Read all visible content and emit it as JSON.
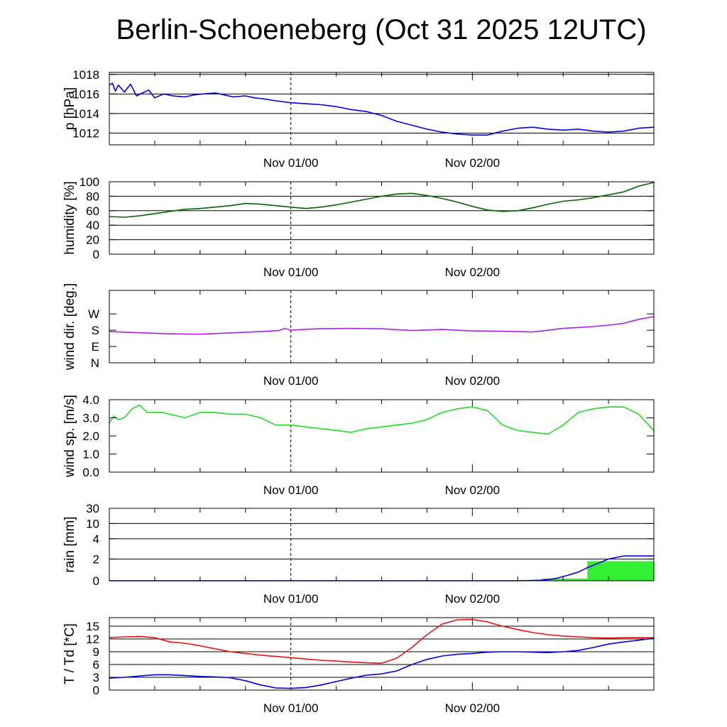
{
  "title": "Berlin-Schoeneberg (Oct 31 2025 12UTC)",
  "x_tick_labels": [
    "Nov 01/00",
    "Nov 02/00"
  ],
  "chart_data": [
    {
      "id": "pressure",
      "type": "line",
      "ylabel": "p [hPa]",
      "ylim": [
        1010.8,
        1018.2
      ],
      "yticks": [
        1012,
        1014,
        1016,
        1018
      ],
      "ytick_labels": [
        "1012",
        "1014",
        "1016",
        "1018"
      ],
      "grid": true,
      "series": [
        {
          "name": "pressure",
          "color": "#0000dd",
          "x": [
            0,
            0.2,
            0.4,
            0.6,
            1.0,
            1.4,
            1.8,
            2.2,
            2.6,
            3.0,
            3.6,
            4.2,
            5.0,
            5.6,
            6.2,
            7.0,
            7.6,
            8.2,
            9.0,
            9.6,
            10.2,
            11.0,
            12.0,
            13.0,
            14.0,
            15.0,
            16.0,
            17.0,
            18.0,
            19.0,
            20.0,
            21.0,
            22.0,
            23.0,
            24.0,
            25.0,
            26.0,
            27.0,
            28.0,
            29.0,
            30.0,
            31.0,
            32.0,
            33.0,
            34.0,
            35.0,
            36.0
          ],
          "values": [
            1016.9,
            1017.1,
            1016.3,
            1016.9,
            1016.2,
            1017.0,
            1015.8,
            1016.1,
            1016.4,
            1015.6,
            1016.0,
            1015.8,
            1015.7,
            1015.9,
            1016.0,
            1016.1,
            1015.9,
            1015.7,
            1015.8,
            1015.6,
            1015.5,
            1015.3,
            1015.1,
            1015.0,
            1014.9,
            1014.7,
            1014.4,
            1014.2,
            1013.8,
            1013.2,
            1012.8,
            1012.4,
            1012.1,
            1011.9,
            1011.8,
            1011.8,
            1012.2,
            1012.5,
            1012.6,
            1012.4,
            1012.3,
            1012.4,
            1012.2,
            1012.1,
            1012.2,
            1012.5,
            1012.6
          ]
        }
      ]
    },
    {
      "id": "humidity",
      "type": "line",
      "ylabel": "humidity [%]",
      "ylim": [
        0,
        100
      ],
      "yticks": [
        0,
        20,
        40,
        60,
        80,
        100
      ],
      "ytick_labels": [
        "0",
        "20",
        "40",
        "60",
        "80",
        "100"
      ],
      "grid": true,
      "series": [
        {
          "name": "humidity",
          "color": "#006600",
          "x": [
            0,
            1,
            2,
            3,
            4,
            5,
            6,
            7,
            8,
            9,
            10,
            11,
            12,
            13,
            14,
            15,
            16,
            17,
            18,
            19,
            20,
            21,
            22,
            23,
            24,
            25,
            26,
            27,
            28,
            29,
            30,
            31,
            32,
            33,
            34,
            35,
            36
          ],
          "values": [
            52,
            51,
            53,
            56,
            59,
            62,
            63,
            65,
            67,
            70,
            69,
            67,
            65,
            63,
            65,
            68,
            72,
            76,
            80,
            83,
            84,
            81,
            77,
            72,
            66,
            61,
            59,
            60,
            64,
            69,
            73,
            75,
            78,
            82,
            86,
            94,
            99
          ]
        }
      ]
    },
    {
      "id": "wind_direction",
      "type": "line",
      "ylabel": "wind dir. [deg.]",
      "ylim": [
        0,
        400
      ],
      "yticks": [
        0,
        90,
        180,
        270
      ],
      "ytick_labels": [
        "N",
        "E",
        "S",
        "W"
      ],
      "grid": false,
      "series": [
        {
          "name": "wind direction",
          "color": "#aa22dd",
          "x": [
            0,
            2,
            4,
            6,
            8,
            10,
            11.2,
            11.6,
            12.0,
            13,
            14,
            16,
            18,
            20,
            22,
            24,
            26,
            28,
            29,
            30,
            31,
            32,
            33,
            34,
            35,
            36
          ],
          "values": [
            172,
            166,
            160,
            158,
            165,
            172,
            178,
            190,
            180,
            185,
            188,
            190,
            188,
            178,
            184,
            176,
            174,
            170,
            180,
            190,
            195,
            200,
            208,
            218,
            240,
            255
          ]
        }
      ]
    },
    {
      "id": "wind_speed",
      "type": "line",
      "ylabel": "wind sp. [m/s]",
      "ylim": [
        0,
        4.0
      ],
      "yticks": [
        0.0,
        1.0,
        2.0,
        3.0,
        4.0
      ],
      "ytick_labels": [
        "0.0",
        "1.0",
        "2.0",
        "3.0",
        "4.0"
      ],
      "grid": false,
      "series": [
        {
          "name": "wind speed",
          "color": "#22dd22",
          "x": [
            0,
            0.3,
            0.6,
            1.0,
            1.5,
            2.0,
            2.5,
            3.0,
            3.5,
            4.0,
            5.0,
            6.0,
            7.0,
            8.0,
            9.0,
            10.0,
            11.0,
            12.0,
            13.0,
            14.0,
            16.0,
            17.0,
            18.0,
            19.0,
            20.0,
            21.0,
            22.0,
            23.0,
            24.0,
            25.0,
            26.0,
            27.0,
            28.0,
            29.0,
            30.0,
            31.0,
            32.0,
            33.0,
            34.0,
            35.0,
            36.0
          ],
          "values": [
            2.7,
            3.1,
            2.9,
            3.0,
            3.5,
            3.7,
            3.3,
            3.3,
            3.3,
            3.2,
            3.0,
            3.3,
            3.3,
            3.2,
            3.2,
            3.0,
            2.6,
            2.6,
            2.5,
            2.4,
            2.2,
            2.4,
            2.5,
            2.6,
            2.7,
            2.9,
            3.3,
            3.5,
            3.6,
            3.4,
            2.6,
            2.3,
            2.2,
            2.1,
            2.6,
            3.3,
            3.5,
            3.6,
            3.6,
            3.2,
            2.3
          ]
        }
      ]
    },
    {
      "id": "rain",
      "type": "bar+line",
      "ylabel": "rain [mm]",
      "scale": "nonlinear",
      "yticks": [
        0,
        2,
        4,
        10,
        30
      ],
      "ytick_labels": [
        "0",
        "2",
        "4",
        "10",
        "30"
      ],
      "grid": true,
      "bars": [
        {
          "x0": 28.6,
          "x1": 31.6,
          "value": 0.2
        },
        {
          "x0": 31.6,
          "x1": 36.0,
          "value": 1.8
        }
      ],
      "bar_color": "#33ee33",
      "series": [
        {
          "name": "accumulated rain",
          "color": "#0000dd",
          "x": [
            0,
            27.0,
            28.6,
            29.5,
            30.3,
            31.0,
            31.6,
            32.3,
            33.0,
            34.0,
            35.0,
            36.0
          ],
          "values": [
            0,
            0,
            0.05,
            0.2,
            0.5,
            0.8,
            1.2,
            1.6,
            2.0,
            2.3,
            2.3,
            2.3
          ]
        }
      ]
    },
    {
      "id": "temperature",
      "type": "line",
      "ylabel": "T / Td [*C]",
      "ylim": [
        0,
        17
      ],
      "yticks": [
        0,
        3,
        6,
        9,
        12,
        15
      ],
      "ytick_labels": [
        "0",
        "3",
        "6",
        "9",
        "12",
        "15"
      ],
      "grid": true,
      "series": [
        {
          "name": "T",
          "color": "#ee1111",
          "x": [
            0,
            1,
            2,
            3,
            4,
            5,
            6,
            7,
            8,
            9,
            10,
            11,
            12,
            13,
            14,
            15,
            16,
            17,
            18,
            19,
            20,
            21,
            22,
            23,
            24,
            25,
            26,
            27,
            28,
            29,
            30,
            31,
            32,
            33,
            34,
            35,
            36
          ],
          "values": [
            12.3,
            12.5,
            12.6,
            12.3,
            11.3,
            11.0,
            10.4,
            9.7,
            9.0,
            8.6,
            8.2,
            7.9,
            7.6,
            7.3,
            7.0,
            6.8,
            6.6,
            6.4,
            6.3,
            7.5,
            10.0,
            13.0,
            15.5,
            16.5,
            16.6,
            16.0,
            15.0,
            14.2,
            13.5,
            13.0,
            12.7,
            12.5,
            12.3,
            12.2,
            12.3,
            12.3,
            12.3
          ]
        },
        {
          "name": "Td",
          "color": "#0000dd",
          "x": [
            0,
            1,
            2,
            3,
            4,
            5,
            6,
            7,
            8,
            9,
            10,
            11,
            12,
            13,
            14,
            15,
            16,
            17,
            18,
            19,
            20,
            21,
            22,
            23,
            24,
            25,
            26,
            27,
            28,
            29,
            30,
            31,
            32,
            33,
            34,
            35,
            36
          ],
          "values": [
            2.8,
            3.0,
            3.3,
            3.6,
            3.6,
            3.4,
            3.2,
            3.1,
            2.9,
            2.2,
            1.2,
            0.5,
            0.4,
            0.6,
            1.2,
            2.0,
            2.8,
            3.5,
            3.8,
            4.5,
            6.0,
            7.2,
            8.0,
            8.4,
            8.6,
            8.9,
            9.0,
            9.0,
            8.9,
            8.8,
            9.0,
            9.3,
            10.0,
            10.8,
            11.3,
            11.7,
            12.2
          ]
        }
      ]
    }
  ]
}
